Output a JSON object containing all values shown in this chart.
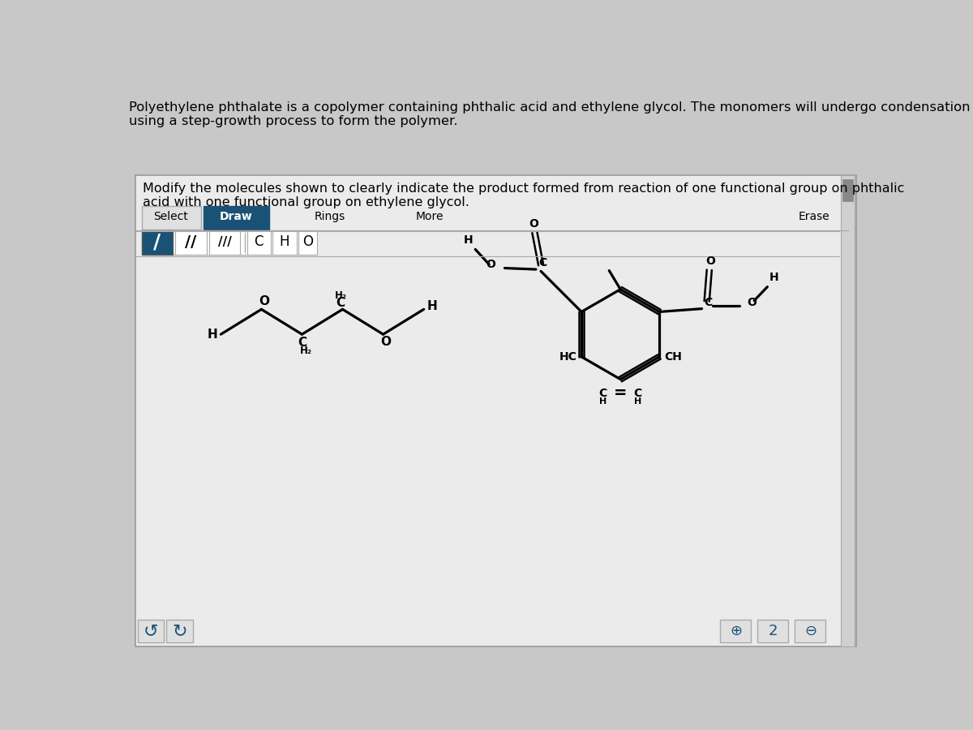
{
  "bg_color": "#c8c8c8",
  "panel_bg": "#ebebeb",
  "title_text1": "Polyethylene phthalate is a copolymer containing phthalic acid and ethylene glycol. The monomers will undergo condensation",
  "title_text2": "using a step-growth process to form the polymer.",
  "question_text1": "Modify the molecules shown to clearly indicate the product formed from reaction of one functional group on phthalic",
  "question_text2": "acid with one functional group on ethylene glycol.",
  "draw_color": "#1a5276",
  "bond_slash_color": "#ffffff",
  "bond_bg_color": "#1a5276"
}
